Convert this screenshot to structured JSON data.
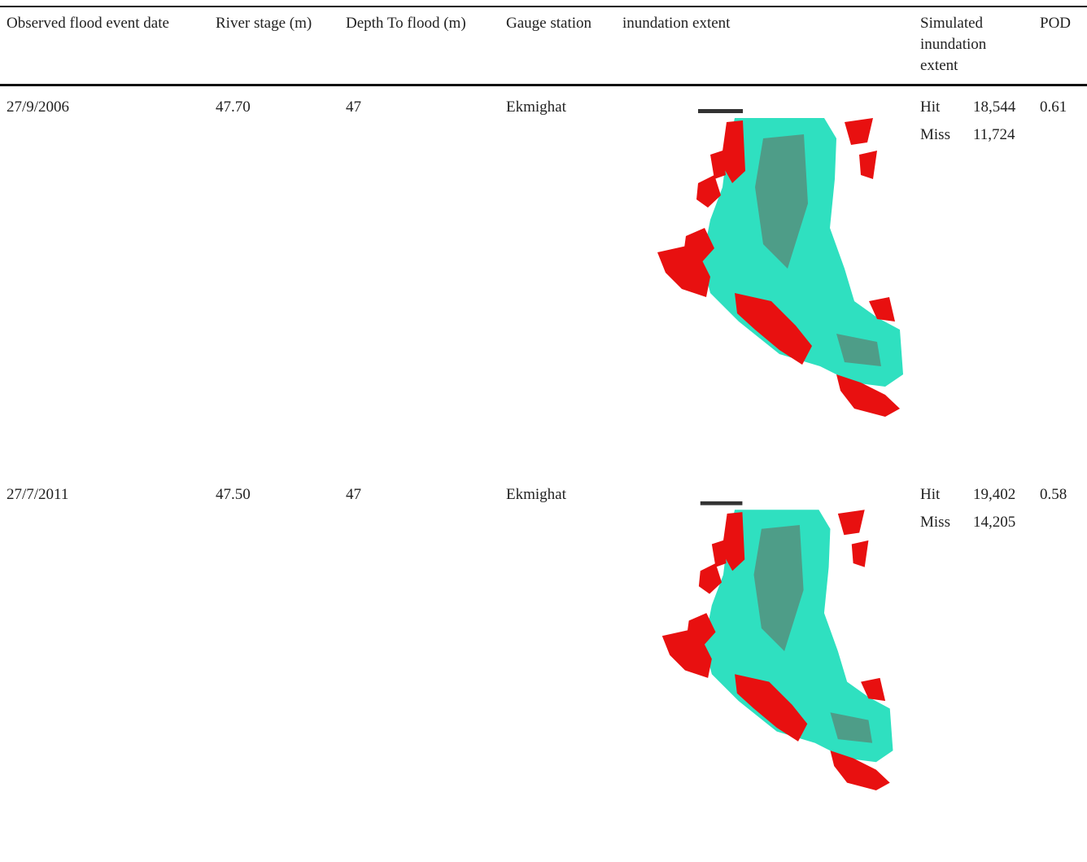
{
  "header": {
    "columns": [
      "Observed flood event date",
      "River stage (m)",
      "Depth To flood (m)",
      "Gauge station",
      "inundation extent",
      "Simulated inundation extent",
      "POD"
    ]
  },
  "table": {
    "rows": [
      {
        "date": "27/9/2006",
        "river_stage": "47.70",
        "depth_to_flood": "47",
        "gauge_station": "Ekmighat",
        "simulated": [
          {
            "label": "Hit",
            "value": "18,544"
          },
          {
            "label": "Miss",
            "value": "11,724"
          }
        ],
        "pod": "0.61"
      },
      {
        "date": "27/7/2011",
        "river_stage": "47.50",
        "depth_to_flood": "47",
        "gauge_station": "Ekmighat",
        "simulated": [
          {
            "label": "Hit",
            "value": "19,402"
          },
          {
            "label": "Miss",
            "value": "14,205"
          }
        ],
        "pod": "0.58"
      }
    ]
  }
}
